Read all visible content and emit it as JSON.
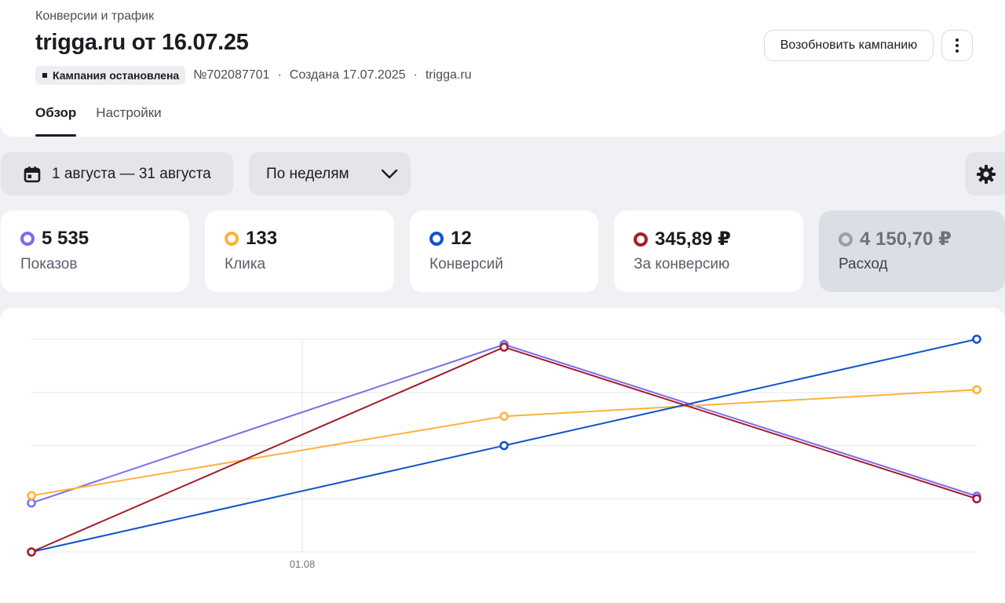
{
  "header": {
    "breadcrumb": "Конверсии и трафик",
    "title": "trigga.ru от 16.07.25",
    "status": "Кампания остановлена",
    "campaign_id": "№702087701",
    "created": "Создана 17.07.2025",
    "site": "trigga.ru",
    "resume_label": "Возобновить кампанию"
  },
  "tabs": [
    {
      "label": "Обзор",
      "active": true
    },
    {
      "label": "Настройки",
      "active": false
    }
  ],
  "filters": {
    "period_label": "1 августа — 31 августа",
    "grouping_label": "По неделям"
  },
  "metrics": [
    {
      "value": "5 535",
      "label": "Показов",
      "color": "#7b6cf0",
      "active": true
    },
    {
      "value": "133",
      "label": "Клика",
      "color": "#ffb13b",
      "active": true
    },
    {
      "value": "12",
      "label": "Конверсий",
      "color": "#1053c9",
      "active": true
    },
    {
      "value": "345,89 ₽",
      "label": "За конверсию",
      "color": "#a51d2d",
      "active": true
    },
    {
      "value": "4 150,70 ₽",
      "label": "Расход",
      "color": "#9a9ea9",
      "active": false
    }
  ],
  "chart_data": {
    "type": "line",
    "x": [
      "",
      "",
      ""
    ],
    "x_tick_labels": [
      "01.08"
    ],
    "ylim": [
      0,
      4
    ],
    "grid": true,
    "series": [
      {
        "name": "Показов",
        "color": "#7b6cf0",
        "values": [
          0.92,
          3.9,
          1.05
        ]
      },
      {
        "name": "Клика",
        "color": "#ffb13b",
        "values": [
          1.06,
          2.55,
          3.05
        ]
      },
      {
        "name": "Конверсий",
        "color": "#1053c9",
        "values": [
          0.0,
          2.0,
          4.0
        ]
      },
      {
        "name": "За конверсию",
        "color": "#a51d2d",
        "values": [
          0.0,
          3.85,
          1.0
        ]
      }
    ]
  }
}
